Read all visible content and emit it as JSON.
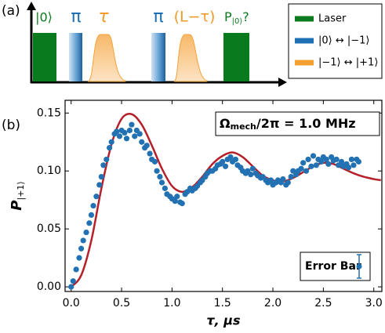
{
  "diagram": {
    "panel_label": "(a)",
    "pulses": [
      "|0⟩",
      "π",
      "τ",
      "π",
      "(L−τ)",
      "P",
      "|0⟩",
      "?"
    ],
    "legend": [
      "Laser",
      "|0⟩ ↔ |−1⟩",
      "|−1⟩ ↔ |+1⟩"
    ]
  },
  "chart_data": {
    "type": "scatter",
    "panel_label": "(b)",
    "x_label": "τ, μs",
    "y_label": "P",
    "y_label_sub": "|+1⟩",
    "annotation": {
      "main": "Ω",
      "sub": "mech",
      "rest": "/2π = 1.0 MHz"
    },
    "error_bar_label": "Error Bar",
    "xlim": [
      -0.06,
      3.08
    ],
    "ylim": [
      -0.004,
      0.161
    ],
    "xticks": [
      {
        "value": 0,
        "label": "0.0"
      },
      {
        "value": 0.5,
        "label": "0.5"
      },
      {
        "value": 1,
        "label": "1.0"
      },
      {
        "value": 1.5,
        "label": "1.5"
      },
      {
        "value": 2,
        "label": "2.0"
      },
      {
        "value": 2.5,
        "label": "2.5"
      },
      {
        "value": 3,
        "label": "3.0"
      }
    ],
    "yticks": [
      {
        "value": 0,
        "label": "0.00"
      },
      {
        "value": 0.05,
        "label": "0.05"
      },
      {
        "value": 0.1,
        "label": "0.10"
      },
      {
        "value": 0.15,
        "label": "0.15"
      }
    ],
    "grid": false,
    "series": [
      {
        "type": "scatter",
        "color": "#2271b3",
        "x": [
          0.0,
          0.02,
          0.05,
          0.08,
          0.1,
          0.12,
          0.15,
          0.18,
          0.2,
          0.22,
          0.25,
          0.28,
          0.3,
          0.32,
          0.35,
          0.38,
          0.4,
          0.43,
          0.45,
          0.48,
          0.5,
          0.53,
          0.55,
          0.58,
          0.6,
          0.63,
          0.65,
          0.68,
          0.7,
          0.73,
          0.75,
          0.78,
          0.8,
          0.83,
          0.85,
          0.88,
          0.9,
          0.93,
          0.95,
          0.98,
          1.0,
          1.03,
          1.05,
          1.08,
          1.1,
          1.13,
          1.15,
          1.18,
          1.2,
          1.23,
          1.25,
          1.28,
          1.3,
          1.33,
          1.35,
          1.38,
          1.4,
          1.43,
          1.45,
          1.48,
          1.5,
          1.53,
          1.55,
          1.58,
          1.6,
          1.63,
          1.65,
          1.68,
          1.7,
          1.73,
          1.75,
          1.78,
          1.8,
          1.83,
          1.85,
          1.88,
          1.9,
          1.93,
          1.95,
          1.98,
          2.0,
          2.03,
          2.05,
          2.08,
          2.1,
          2.13,
          2.15,
          2.18,
          2.2,
          2.23,
          2.25,
          2.28,
          2.3,
          2.33,
          2.35,
          2.38,
          2.4,
          2.43,
          2.45,
          2.48,
          2.5,
          2.53,
          2.55,
          2.58,
          2.6,
          2.63,
          2.65,
          2.68,
          2.7,
          2.73,
          2.75,
          2.78,
          2.8,
          2.83,
          2.85
        ],
        "values": [
          0.0,
          0.005,
          0.015,
          0.025,
          0.033,
          0.04,
          0.047,
          0.055,
          0.062,
          0.07,
          0.078,
          0.088,
          0.095,
          0.105,
          0.11,
          0.12,
          0.125,
          0.132,
          0.134,
          0.13,
          0.135,
          0.133,
          0.128,
          0.135,
          0.14,
          0.13,
          0.135,
          0.132,
          0.125,
          0.12,
          0.122,
          0.115,
          0.11,
          0.108,
          0.1,
          0.095,
          0.09,
          0.085,
          0.08,
          0.078,
          0.076,
          0.074,
          0.078,
          0.073,
          0.072,
          0.08,
          0.082,
          0.085,
          0.083,
          0.085,
          0.087,
          0.09,
          0.092,
          0.095,
          0.098,
          0.1,
          0.1,
          0.102,
          0.105,
          0.106,
          0.108,
          0.104,
          0.11,
          0.112,
          0.108,
          0.11,
          0.105,
          0.103,
          0.1,
          0.098,
          0.1,
          0.097,
          0.102,
          0.098,
          0.096,
          0.094,
          0.095,
          0.092,
          0.09,
          0.092,
          0.088,
          0.09,
          0.092,
          0.09,
          0.093,
          0.088,
          0.09,
          0.095,
          0.1,
          0.097,
          0.1,
          0.102,
          0.107,
          0.1,
          0.11,
          0.104,
          0.113,
          0.105,
          0.11,
          0.108,
          0.112,
          0.11,
          0.106,
          0.112,
          0.109,
          0.11,
          0.105,
          0.108,
          0.104,
          0.106,
          0.103,
          0.11,
          0.105,
          0.11,
          0.108
        ]
      },
      {
        "type": "line",
        "color": "#b5202a",
        "x": [
          0.0,
          0.1,
          0.2,
          0.3,
          0.4,
          0.5,
          0.6,
          0.7,
          0.8,
          0.9,
          1.0,
          1.1,
          1.2,
          1.3,
          1.4,
          1.5,
          1.6,
          1.7,
          1.8,
          1.9,
          2.0,
          2.1,
          2.2,
          2.3,
          2.4,
          2.5,
          2.6,
          2.7,
          2.8,
          2.9,
          3.0,
          3.07
        ],
        "values": [
          0.0,
          0.01,
          0.04,
          0.085,
          0.123,
          0.145,
          0.149,
          0.14,
          0.122,
          0.102,
          0.087,
          0.082,
          0.086,
          0.095,
          0.106,
          0.113,
          0.116,
          0.112,
          0.104,
          0.096,
          0.092,
          0.091,
          0.094,
          0.099,
          0.104,
          0.107,
          0.106,
          0.102,
          0.098,
          0.095,
          0.093,
          0.092
        ]
      }
    ]
  }
}
